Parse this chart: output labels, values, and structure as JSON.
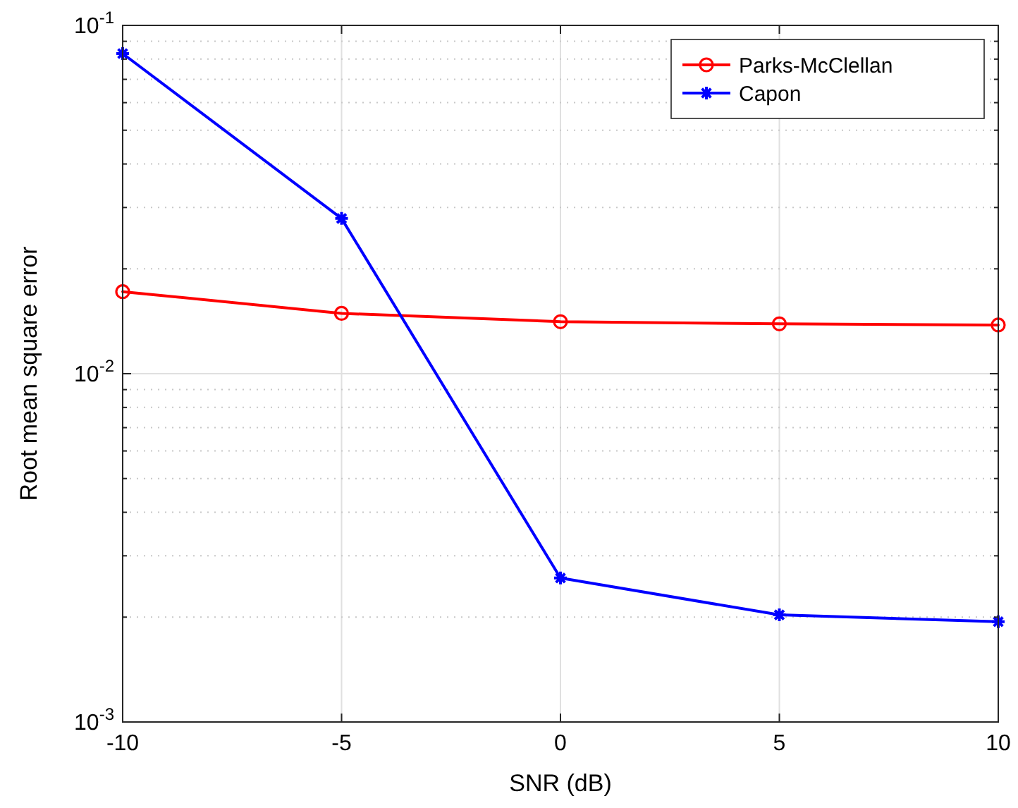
{
  "chart_data": {
    "type": "line",
    "xlabel": "SNR (dB)",
    "ylabel": "Root mean square error",
    "x": [
      -10,
      -5,
      0,
      5,
      10
    ],
    "series": [
      {
        "name": "Parks-McClellan",
        "color": "#ff0000",
        "marker": "circle",
        "values": [
          0.0172,
          0.0149,
          0.0141,
          0.0139,
          0.0138
        ]
      },
      {
        "name": "Capon",
        "color": "#0000ff",
        "marker": "cross",
        "values": [
          0.083,
          0.0279,
          0.00259,
          0.00203,
          0.00194
        ]
      }
    ],
    "xlim": [
      -10,
      10
    ],
    "xticks": [
      -10,
      -5,
      0,
      5,
      10
    ],
    "ylim": [
      0.001,
      0.1
    ],
    "log": "y",
    "yticks": [
      {
        "value": 0.001,
        "label": "10$^{-3}$"
      },
      {
        "value": 0.002,
        "label": null
      },
      {
        "value": 0.003,
        "label": null
      },
      {
        "value": 0.004,
        "label": null
      },
      {
        "value": 0.005,
        "label": null
      },
      {
        "value": 0.006,
        "label": null
      },
      {
        "value": 0.007,
        "label": null
      },
      {
        "value": 0.008,
        "label": null
      },
      {
        "value": 0.009,
        "label": null
      },
      {
        "value": 0.01,
        "label": "10$^{-2}$"
      },
      {
        "value": 0.02,
        "label": null
      },
      {
        "value": 0.03,
        "label": null
      },
      {
        "value": 0.04,
        "label": null
      },
      {
        "value": 0.05,
        "label": null
      },
      {
        "value": 0.06,
        "label": null
      },
      {
        "value": 0.07,
        "label": null
      },
      {
        "value": 0.08,
        "label": null
      },
      {
        "value": 0.09,
        "label": null
      },
      {
        "value": 0.1,
        "label": "10$^{-1}$"
      }
    ],
    "grid": true,
    "legend": "top right"
  }
}
